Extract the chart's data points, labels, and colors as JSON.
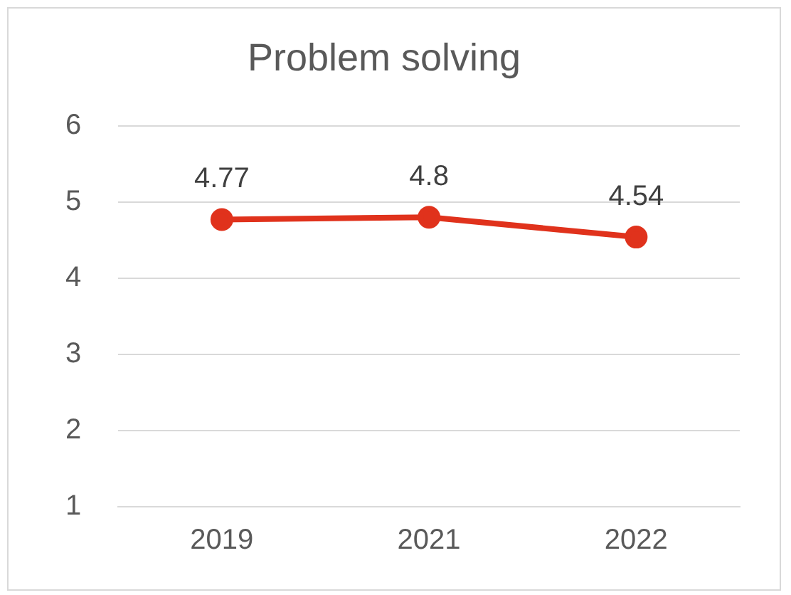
{
  "chart_data": {
    "type": "line",
    "title": "Problem solving",
    "categories": [
      "2019",
      "2021",
      "2022"
    ],
    "series": [
      {
        "color": "#e0321c",
        "values": [
          4.77,
          4.8,
          4.54
        ]
      }
    ],
    "ylim": [
      1,
      6
    ],
    "yticks": [
      1,
      2,
      3,
      4,
      5,
      6
    ],
    "grid": "y",
    "legend": false,
    "marker": "circle",
    "line_style": "solid",
    "data_labels": true
  }
}
